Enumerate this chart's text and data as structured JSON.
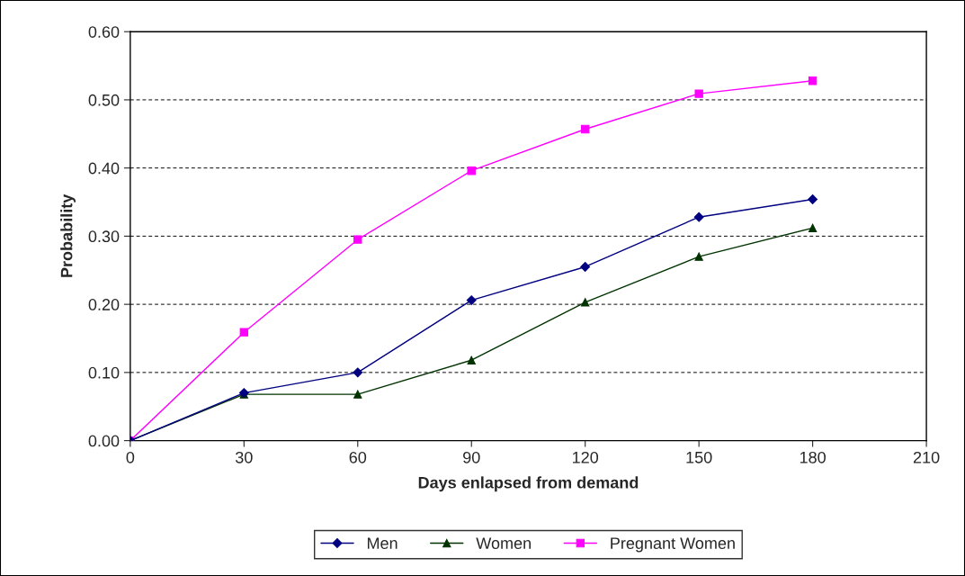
{
  "chart_data": {
    "type": "line",
    "xlabel": "Days enlapsed from demand",
    "ylabel": "Probability",
    "x": [
      0,
      30,
      60,
      90,
      120,
      150,
      180
    ],
    "series": [
      {
        "name": "Men",
        "color": "#000080",
        "marker": "diamond",
        "values": [
          0,
          0.07,
          0.1,
          0.206,
          0.255,
          0.328,
          0.354
        ]
      },
      {
        "name": "Women",
        "color": "#003300",
        "marker": "triangle",
        "values": [
          0,
          0.068,
          0.068,
          0.118,
          0.203,
          0.27,
          0.312
        ]
      },
      {
        "name": "Pregnant Women",
        "color": "#ff00ff",
        "marker": "square",
        "values": [
          0,
          0.159,
          0.295,
          0.396,
          0.457,
          0.509,
          0.528
        ]
      }
    ],
    "xlim": [
      0,
      210
    ],
    "xticks": [
      0,
      30,
      60,
      90,
      120,
      150,
      180,
      210
    ],
    "ylim": [
      0,
      0.6
    ],
    "yticks": [
      {
        "value": 0,
        "label": "0.00"
      },
      {
        "value": 0.1,
        "label": "0.10"
      },
      {
        "value": 0.2,
        "label": "0.20"
      },
      {
        "value": 0.3,
        "label": "0.30"
      },
      {
        "value": 0.4,
        "label": "0.40"
      },
      {
        "value": 0.5,
        "label": "0.50"
      },
      {
        "value": 0.6,
        "label": "0.60"
      }
    ],
    "grid": "y",
    "legend": "bottom",
    "line_style": "solid"
  }
}
